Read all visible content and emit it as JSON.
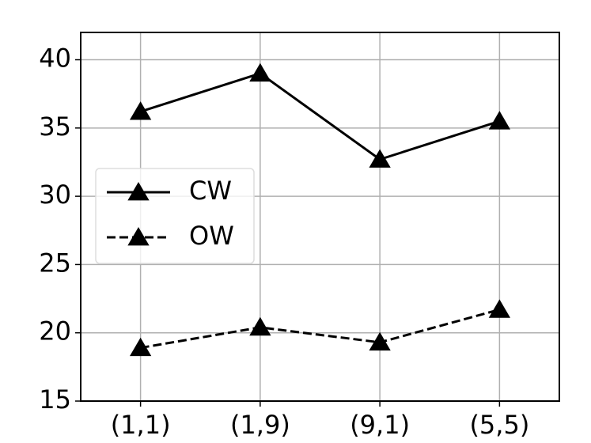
{
  "chart_data": {
    "type": "line",
    "categories": [
      "(1,1)",
      "(1,9)",
      "(9,1)",
      "(5,5)"
    ],
    "series": [
      {
        "name": "CW",
        "color": "#000000",
        "line_style": "solid",
        "values": [
          36.2,
          39.0,
          32.7,
          35.5
        ]
      },
      {
        "name": "OW",
        "color": "#000000",
        "line_style": "dashed",
        "values": [
          18.9,
          20.4,
          19.3,
          21.7
        ]
      }
    ],
    "ylim": [
      15,
      42
    ],
    "yticks": [
      15,
      20,
      25,
      30,
      35,
      40
    ],
    "grid": true,
    "legend": "center left"
  }
}
